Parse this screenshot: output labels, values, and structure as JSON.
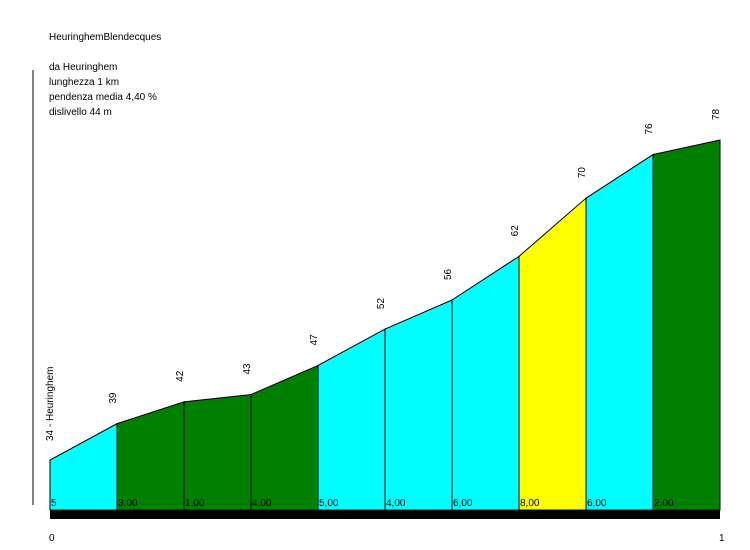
{
  "header": {
    "title": "HeuringhemBlendecques",
    "from": "da Heuringhem",
    "length": "lunghezza 1 km",
    "avg_gradient": "pendenza media 4,40 %",
    "elevation_gain": "dislivello 44 m"
  },
  "chart_data": {
    "type": "area",
    "start_label": "34 - Heuringhem",
    "elevations": [
      34,
      39,
      42,
      43,
      47,
      52,
      56,
      62,
      70,
      76,
      78
    ],
    "elevation_labels": [
      "39",
      "42",
      "43",
      "47",
      "52",
      "56",
      "62",
      "70",
      "76",
      "78"
    ],
    "segments": [
      {
        "gradient": "5",
        "color": "#00ffff"
      },
      {
        "gradient": "3,00",
        "color": "#008000"
      },
      {
        "gradient": "1,00",
        "color": "#008000"
      },
      {
        "gradient": "4,00",
        "color": "#008000"
      },
      {
        "gradient": "5,00",
        "color": "#00ffff"
      },
      {
        "gradient": "4,00",
        "color": "#00ffff"
      },
      {
        "gradient": "6,00",
        "color": "#00ffff"
      },
      {
        "gradient": "8,00",
        "color": "#ffff00"
      },
      {
        "gradient": "6,00",
        "color": "#00ffff"
      },
      {
        "gradient": "2,00",
        "color": "#008000"
      }
    ],
    "x_ticks": [
      "0",
      "1"
    ],
    "xlim": [
      0,
      1
    ]
  }
}
